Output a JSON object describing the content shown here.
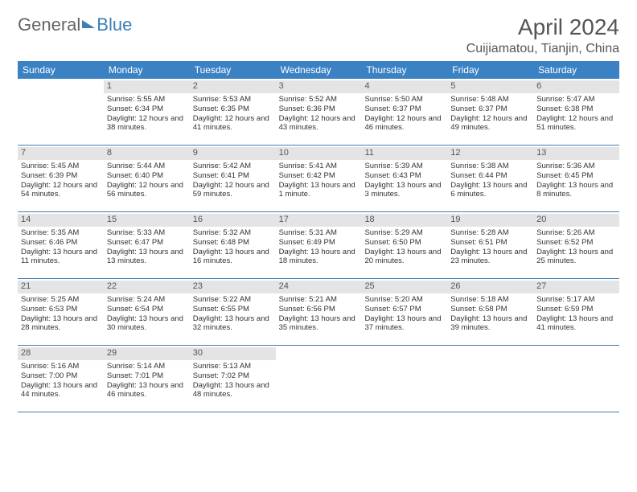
{
  "logo": {
    "part1": "General",
    "part2": "Blue"
  },
  "title": "April 2024",
  "location": "Cuijiamatou, Tianjin, China",
  "header_bg": "#3b82c4",
  "header_fg": "#ffffff",
  "rule_color": "#3b7fb8",
  "daynum_bg": "#e4e4e4",
  "dayNames": [
    "Sunday",
    "Monday",
    "Tuesday",
    "Wednesday",
    "Thursday",
    "Friday",
    "Saturday"
  ],
  "weeks": [
    [
      {
        "n": "",
        "empty": true
      },
      {
        "n": "1",
        "sr": "Sunrise: 5:55 AM",
        "ss": "Sunset: 6:34 PM",
        "dl": "Daylight: 12 hours and 38 minutes."
      },
      {
        "n": "2",
        "sr": "Sunrise: 5:53 AM",
        "ss": "Sunset: 6:35 PM",
        "dl": "Daylight: 12 hours and 41 minutes."
      },
      {
        "n": "3",
        "sr": "Sunrise: 5:52 AM",
        "ss": "Sunset: 6:36 PM",
        "dl": "Daylight: 12 hours and 43 minutes."
      },
      {
        "n": "4",
        "sr": "Sunrise: 5:50 AM",
        "ss": "Sunset: 6:37 PM",
        "dl": "Daylight: 12 hours and 46 minutes."
      },
      {
        "n": "5",
        "sr": "Sunrise: 5:48 AM",
        "ss": "Sunset: 6:37 PM",
        "dl": "Daylight: 12 hours and 49 minutes."
      },
      {
        "n": "6",
        "sr": "Sunrise: 5:47 AM",
        "ss": "Sunset: 6:38 PM",
        "dl": "Daylight: 12 hours and 51 minutes."
      }
    ],
    [
      {
        "n": "7",
        "sr": "Sunrise: 5:45 AM",
        "ss": "Sunset: 6:39 PM",
        "dl": "Daylight: 12 hours and 54 minutes."
      },
      {
        "n": "8",
        "sr": "Sunrise: 5:44 AM",
        "ss": "Sunset: 6:40 PM",
        "dl": "Daylight: 12 hours and 56 minutes."
      },
      {
        "n": "9",
        "sr": "Sunrise: 5:42 AM",
        "ss": "Sunset: 6:41 PM",
        "dl": "Daylight: 12 hours and 59 minutes."
      },
      {
        "n": "10",
        "sr": "Sunrise: 5:41 AM",
        "ss": "Sunset: 6:42 PM",
        "dl": "Daylight: 13 hours and 1 minute."
      },
      {
        "n": "11",
        "sr": "Sunrise: 5:39 AM",
        "ss": "Sunset: 6:43 PM",
        "dl": "Daylight: 13 hours and 3 minutes."
      },
      {
        "n": "12",
        "sr": "Sunrise: 5:38 AM",
        "ss": "Sunset: 6:44 PM",
        "dl": "Daylight: 13 hours and 6 minutes."
      },
      {
        "n": "13",
        "sr": "Sunrise: 5:36 AM",
        "ss": "Sunset: 6:45 PM",
        "dl": "Daylight: 13 hours and 8 minutes."
      }
    ],
    [
      {
        "n": "14",
        "sr": "Sunrise: 5:35 AM",
        "ss": "Sunset: 6:46 PM",
        "dl": "Daylight: 13 hours and 11 minutes."
      },
      {
        "n": "15",
        "sr": "Sunrise: 5:33 AM",
        "ss": "Sunset: 6:47 PM",
        "dl": "Daylight: 13 hours and 13 minutes."
      },
      {
        "n": "16",
        "sr": "Sunrise: 5:32 AM",
        "ss": "Sunset: 6:48 PM",
        "dl": "Daylight: 13 hours and 16 minutes."
      },
      {
        "n": "17",
        "sr": "Sunrise: 5:31 AM",
        "ss": "Sunset: 6:49 PM",
        "dl": "Daylight: 13 hours and 18 minutes."
      },
      {
        "n": "18",
        "sr": "Sunrise: 5:29 AM",
        "ss": "Sunset: 6:50 PM",
        "dl": "Daylight: 13 hours and 20 minutes."
      },
      {
        "n": "19",
        "sr": "Sunrise: 5:28 AM",
        "ss": "Sunset: 6:51 PM",
        "dl": "Daylight: 13 hours and 23 minutes."
      },
      {
        "n": "20",
        "sr": "Sunrise: 5:26 AM",
        "ss": "Sunset: 6:52 PM",
        "dl": "Daylight: 13 hours and 25 minutes."
      }
    ],
    [
      {
        "n": "21",
        "sr": "Sunrise: 5:25 AM",
        "ss": "Sunset: 6:53 PM",
        "dl": "Daylight: 13 hours and 28 minutes."
      },
      {
        "n": "22",
        "sr": "Sunrise: 5:24 AM",
        "ss": "Sunset: 6:54 PM",
        "dl": "Daylight: 13 hours and 30 minutes."
      },
      {
        "n": "23",
        "sr": "Sunrise: 5:22 AM",
        "ss": "Sunset: 6:55 PM",
        "dl": "Daylight: 13 hours and 32 minutes."
      },
      {
        "n": "24",
        "sr": "Sunrise: 5:21 AM",
        "ss": "Sunset: 6:56 PM",
        "dl": "Daylight: 13 hours and 35 minutes."
      },
      {
        "n": "25",
        "sr": "Sunrise: 5:20 AM",
        "ss": "Sunset: 6:57 PM",
        "dl": "Daylight: 13 hours and 37 minutes."
      },
      {
        "n": "26",
        "sr": "Sunrise: 5:18 AM",
        "ss": "Sunset: 6:58 PM",
        "dl": "Daylight: 13 hours and 39 minutes."
      },
      {
        "n": "27",
        "sr": "Sunrise: 5:17 AM",
        "ss": "Sunset: 6:59 PM",
        "dl": "Daylight: 13 hours and 41 minutes."
      }
    ],
    [
      {
        "n": "28",
        "sr": "Sunrise: 5:16 AM",
        "ss": "Sunset: 7:00 PM",
        "dl": "Daylight: 13 hours and 44 minutes."
      },
      {
        "n": "29",
        "sr": "Sunrise: 5:14 AM",
        "ss": "Sunset: 7:01 PM",
        "dl": "Daylight: 13 hours and 46 minutes."
      },
      {
        "n": "30",
        "sr": "Sunrise: 5:13 AM",
        "ss": "Sunset: 7:02 PM",
        "dl": "Daylight: 13 hours and 48 minutes."
      },
      {
        "n": "",
        "empty": true
      },
      {
        "n": "",
        "empty": true
      },
      {
        "n": "",
        "empty": true
      },
      {
        "n": "",
        "empty": true
      }
    ]
  ]
}
